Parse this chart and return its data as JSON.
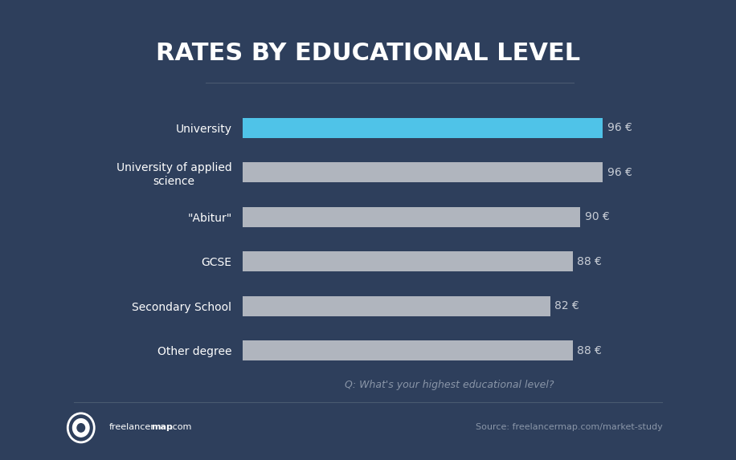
{
  "title": "RATES BY EDUCATIONAL LEVEL",
  "categories": [
    "University",
    "University of applied\nscience",
    "\"Abitur\"",
    "GCSE",
    "Secondary School",
    "Other degree"
  ],
  "values": [
    96,
    96,
    90,
    88,
    82,
    88
  ],
  "bar_colors": [
    "#4fc3e8",
    "#b0b5be",
    "#b0b5be",
    "#b0b5be",
    "#b0b5be",
    "#b0b5be"
  ],
  "labels": [
    "96 €",
    "96 €",
    "90 €",
    "88 €",
    "82 €",
    "88 €"
  ],
  "background_color": "#2e3f5c",
  "text_color": "#ffffff",
  "label_color": "#c8cdd6",
  "question_color": "#8a96a8",
  "footer_color": "#8a96a8",
  "separator_color": "#4a5a70",
  "subtitle_question": "Q: What's your highest educational level?",
  "footer_right": "Source: freelancermap.com/market-study",
  "xlim": [
    0,
    110
  ],
  "bar_height": 0.45,
  "title_fontsize": 22,
  "label_fontsize": 10,
  "tick_fontsize": 10,
  "question_fontsize": 9,
  "footer_fontsize": 8
}
